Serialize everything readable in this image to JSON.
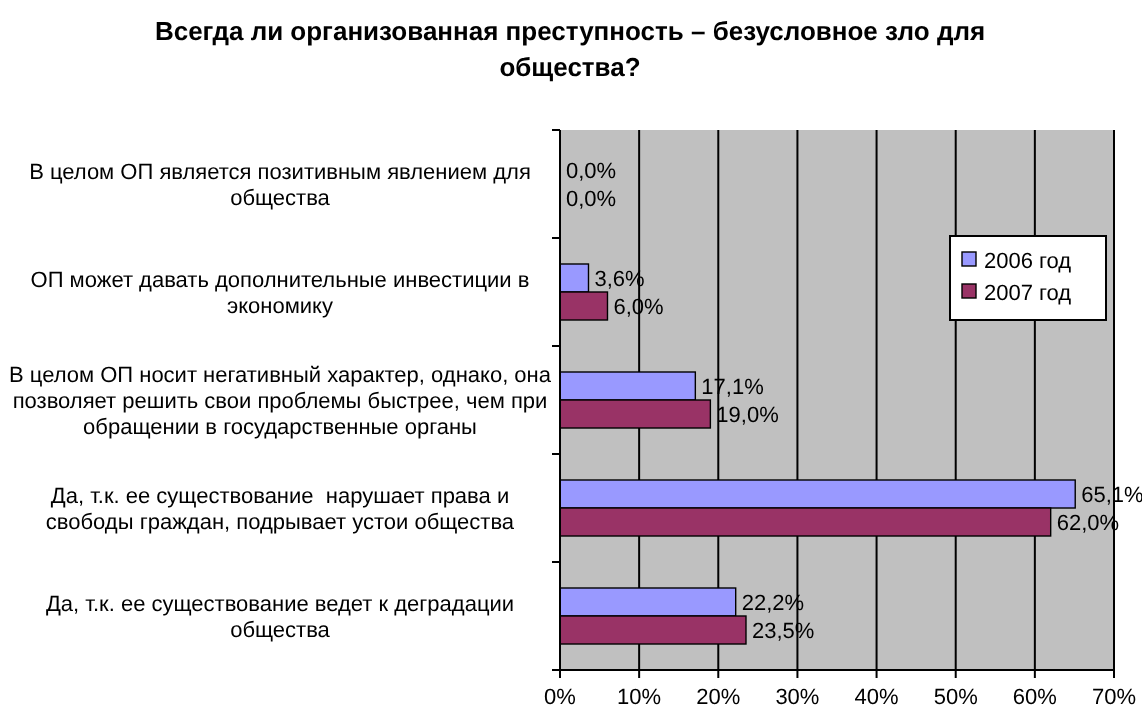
{
  "chart_data": {
    "type": "bar",
    "orientation": "horizontal",
    "title": "Всегда ли организованная преступность – безусловное зло для общества?",
    "categories": [
      "В целом ОП является позитивным явлением для общества",
      "ОП может давать дополнительные инвестиции в экономику",
      "В целом ОП носит негативный характер, однако, она позволяет решить свои проблемы быстрее, чем при обращении в государственные органы",
      "Да, т.к. ее существование  нарушает права и свободы граждан, подрывает устои общества",
      "Да, т.к. ее существование ведет к деградации общества"
    ],
    "series": [
      {
        "name": "2006 год",
        "color": "#9999ff",
        "values": [
          0,
          3.6,
          17.1,
          65.1,
          22.2
        ],
        "value_labels": [
          "0,0%",
          "3,6%",
          "17,1%",
          "65,1%",
          "22,2%"
        ]
      },
      {
        "name": "2007 год",
        "color": "#993366",
        "values": [
          0,
          6,
          19,
          62,
          23.5
        ],
        "value_labels": [
          "0,0%",
          "6,0%",
          "19,0%",
          "62,0%",
          "23,5%"
        ]
      }
    ],
    "xlim": [
      0,
      70
    ],
    "xticks": [
      {
        "value": 0,
        "label": "0%"
      },
      {
        "value": 10,
        "label": "10%"
      },
      {
        "value": 20,
        "label": "20%"
      },
      {
        "value": 30,
        "label": "30%"
      },
      {
        "value": 40,
        "label": "40%"
      },
      {
        "value": 50,
        "label": "50%"
      },
      {
        "value": 60,
        "label": "60%"
      },
      {
        "value": 70,
        "label": "70%"
      }
    ],
    "grid": "x",
    "legend": "right"
  }
}
